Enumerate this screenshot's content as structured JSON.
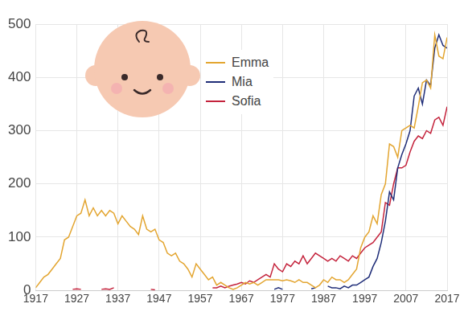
{
  "chart_data": {
    "type": "line",
    "x": [
      1917,
      1918,
      1919,
      1920,
      1921,
      1922,
      1923,
      1924,
      1925,
      1926,
      1927,
      1928,
      1929,
      1930,
      1931,
      1932,
      1933,
      1934,
      1935,
      1936,
      1937,
      1938,
      1939,
      1940,
      1941,
      1942,
      1943,
      1944,
      1945,
      1946,
      1947,
      1948,
      1949,
      1950,
      1951,
      1952,
      1953,
      1954,
      1955,
      1956,
      1957,
      1958,
      1959,
      1960,
      1961,
      1962,
      1963,
      1964,
      1965,
      1966,
      1967,
      1968,
      1969,
      1970,
      1971,
      1972,
      1973,
      1974,
      1975,
      1976,
      1977,
      1978,
      1979,
      1980,
      1981,
      1982,
      1983,
      1984,
      1985,
      1986,
      1987,
      1988,
      1989,
      1990,
      1991,
      1992,
      1993,
      1994,
      1995,
      1996,
      1997,
      1998,
      1999,
      2000,
      2001,
      2002,
      2003,
      2004,
      2005,
      2006,
      2007,
      2008,
      2009,
      2010,
      2011,
      2012,
      2013,
      2014,
      2015,
      2016,
      2017
    ],
    "series": [
      {
        "name": "Emma",
        "color": "#e3a530",
        "values": [
          5,
          15,
          25,
          30,
          40,
          50,
          60,
          95,
          100,
          120,
          140,
          145,
          170,
          140,
          155,
          140,
          150,
          140,
          150,
          145,
          125,
          140,
          130,
          120,
          115,
          105,
          140,
          115,
          110,
          115,
          95,
          90,
          70,
          65,
          70,
          55,
          50,
          40,
          25,
          50,
          40,
          30,
          20,
          25,
          10,
          15,
          10,
          5,
          2,
          5,
          10,
          15,
          12,
          15,
          10,
          15,
          20,
          20,
          20,
          20,
          18,
          20,
          18,
          15,
          20,
          15,
          15,
          10,
          5,
          10,
          20,
          15,
          25,
          20,
          20,
          15,
          20,
          30,
          40,
          80,
          100,
          110,
          140,
          125,
          180,
          200,
          275,
          270,
          250,
          300,
          305,
          310,
          305,
          345,
          390,
          395,
          380,
          480,
          440,
          435,
          475
        ]
      },
      {
        "name": "Mia",
        "color": "#1f2d78",
        "values": [
          null,
          null,
          null,
          null,
          null,
          null,
          null,
          null,
          null,
          null,
          null,
          null,
          null,
          null,
          null,
          null,
          null,
          null,
          null,
          null,
          null,
          null,
          null,
          null,
          null,
          null,
          null,
          null,
          null,
          null,
          null,
          null,
          null,
          null,
          null,
          null,
          null,
          null,
          null,
          null,
          null,
          null,
          null,
          null,
          null,
          null,
          null,
          null,
          null,
          null,
          null,
          null,
          null,
          null,
          null,
          null,
          null,
          null,
          2,
          5,
          2,
          null,
          null,
          null,
          null,
          null,
          null,
          3,
          5,
          null,
          null,
          8,
          5,
          5,
          3,
          8,
          5,
          10,
          10,
          15,
          20,
          25,
          45,
          60,
          90,
          130,
          185,
          170,
          230,
          255,
          275,
          300,
          365,
          380,
          350,
          395,
          385,
          455,
          480,
          460,
          455
        ]
      },
      {
        "name": "Sofia",
        "color": "#c4233c",
        "values": [
          null,
          null,
          null,
          null,
          null,
          null,
          null,
          null,
          null,
          2,
          3,
          2,
          null,
          null,
          null,
          null,
          2,
          3,
          2,
          5,
          null,
          null,
          null,
          null,
          null,
          null,
          null,
          null,
          2,
          1,
          null,
          null,
          null,
          null,
          null,
          2,
          null,
          null,
          null,
          null,
          null,
          null,
          null,
          5,
          5,
          8,
          5,
          8,
          10,
          12,
          15,
          12,
          18,
          15,
          20,
          25,
          30,
          25,
          50,
          40,
          35,
          50,
          45,
          55,
          50,
          65,
          50,
          60,
          70,
          65,
          60,
          55,
          60,
          55,
          65,
          60,
          55,
          65,
          60,
          70,
          80,
          85,
          90,
          100,
          110,
          165,
          160,
          200,
          230,
          230,
          235,
          260,
          280,
          290,
          285,
          300,
          295,
          320,
          325,
          310,
          345
        ]
      }
    ],
    "xlim": [
      1917,
      2017
    ],
    "xticks": [
      1917,
      1927,
      1937,
      1947,
      1957,
      1967,
      1977,
      1987,
      1997,
      2007,
      2017
    ],
    "ylim": [
      0,
      500
    ],
    "yticks": [
      0,
      100,
      200,
      300,
      400,
      500
    ],
    "grid": true,
    "legend": "top"
  }
}
